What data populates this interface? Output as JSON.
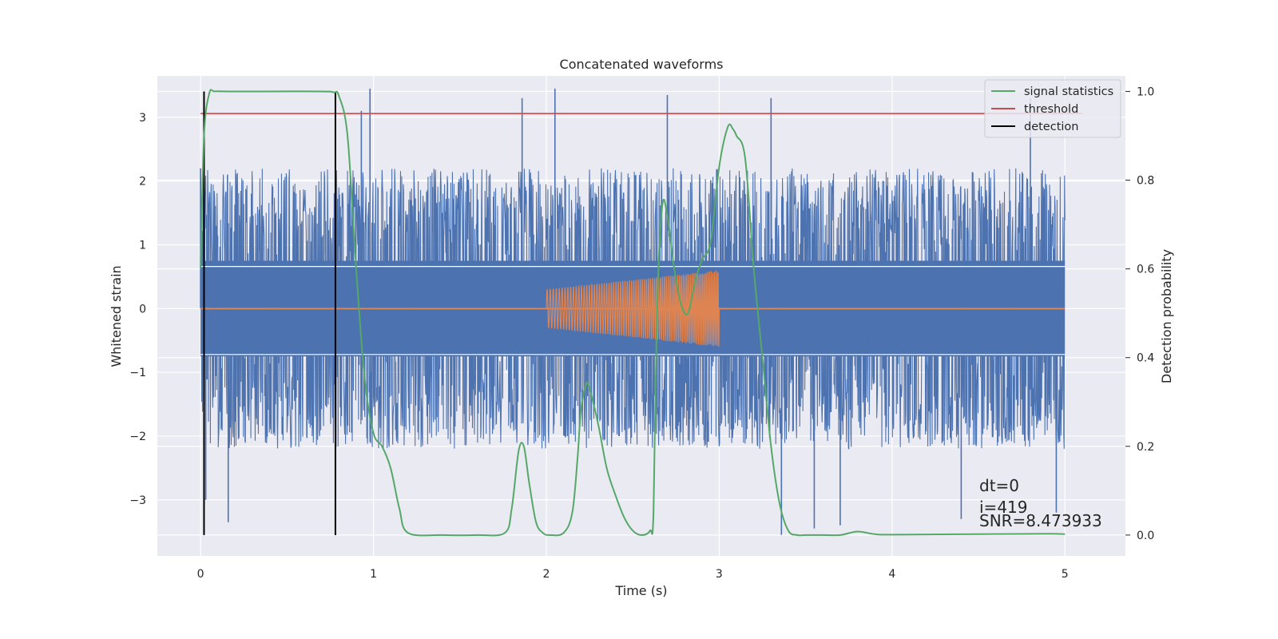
{
  "chart_data": {
    "type": "line",
    "title": "Concatenated waveforms",
    "xlabel": "Time (s)",
    "ylabel": "Whitened strain",
    "y2label": "Detection probability",
    "xlim": [
      -0.25,
      5.35
    ],
    "ylim": [
      -3.88,
      3.65
    ],
    "y2lim": [
      -0.047,
      1.035
    ],
    "x_ticks": [
      0,
      1,
      2,
      3,
      4,
      5
    ],
    "y_ticks": [
      -3,
      -2,
      -1,
      0,
      1,
      2,
      3
    ],
    "y2_ticks": [
      0.0,
      0.2,
      0.4,
      0.6,
      0.8,
      1.0
    ],
    "x_tick_labels": [
      "0",
      "1",
      "2",
      "3",
      "4",
      "5"
    ],
    "y_tick_labels": [
      "−3",
      "−2",
      "−1",
      "0",
      "1",
      "2",
      "3"
    ],
    "y2_tick_labels": [
      "0.0",
      "0.2",
      "0.4",
      "0.6",
      "0.8",
      "1.0"
    ],
    "grid": true,
    "legend_position": "top-right",
    "series": [
      {
        "name": "",
        "kind": "noise",
        "axis": "left",
        "color": "#4c72b0",
        "x_range": [
          0,
          5
        ],
        "envelope": 2.2,
        "spikes": [
          {
            "x": 0.0,
            "y": 2.2
          },
          {
            "x": 0.02,
            "y": -2.6
          },
          {
            "x": 0.03,
            "y": -3.0
          },
          {
            "x": 0.16,
            "y": -3.35
          },
          {
            "x": 0.78,
            "y": -3.25
          },
          {
            "x": 0.93,
            "y": 3.1
          },
          {
            "x": 0.98,
            "y": 3.45
          },
          {
            "x": 1.86,
            "y": 3.3
          },
          {
            "x": 2.05,
            "y": 3.45
          },
          {
            "x": 2.7,
            "y": 3.35
          },
          {
            "x": 3.3,
            "y": 3.3
          },
          {
            "x": 3.36,
            "y": -3.55
          },
          {
            "x": 3.55,
            "y": -3.45
          },
          {
            "x": 3.7,
            "y": -3.4
          },
          {
            "x": 4.4,
            "y": -3.3
          },
          {
            "x": 4.8,
            "y": 3.3
          },
          {
            "x": 4.95,
            "y": -3.2
          }
        ]
      },
      {
        "name": "",
        "kind": "chirp",
        "axis": "left",
        "color": "#dd8452",
        "x_range": [
          2,
          3
        ],
        "amplitude_start": 0.3,
        "amplitude_end": 0.6
      },
      {
        "name": "signal statistics",
        "kind": "line",
        "axis": "right",
        "color": "#55a868",
        "x": [
          0.0,
          0.02,
          0.05,
          0.08,
          0.15,
          0.4,
          0.7,
          0.77,
          0.8,
          0.85,
          0.9,
          0.95,
          1.0,
          1.05,
          1.1,
          1.15,
          1.2,
          1.4,
          1.6,
          1.76,
          1.8,
          1.84,
          1.87,
          1.9,
          1.94,
          1.98,
          2.02,
          2.1,
          2.15,
          2.18,
          2.2,
          2.23,
          2.25,
          2.3,
          2.35,
          2.4,
          2.45,
          2.5,
          2.55,
          2.6,
          2.62,
          2.64,
          2.67,
          2.7,
          2.74,
          2.78,
          2.82,
          2.86,
          2.9,
          2.95,
          3.0,
          3.05,
          3.08,
          3.1,
          3.15,
          3.2,
          3.25,
          3.3,
          3.35,
          3.4,
          3.45,
          3.5,
          3.6,
          3.7,
          3.8,
          3.9,
          4.0,
          4.5,
          4.9,
          5.0
        ],
        "y": [
          0.6,
          0.9,
          0.995,
          1.0,
          1.0,
          1.0,
          1.0,
          0.998,
          0.99,
          0.9,
          0.6,
          0.35,
          0.23,
          0.2,
          0.15,
          0.06,
          0.005,
          0.0,
          0.0,
          0.005,
          0.06,
          0.19,
          0.2,
          0.12,
          0.03,
          0.005,
          0.0,
          0.005,
          0.05,
          0.17,
          0.28,
          0.34,
          0.33,
          0.25,
          0.15,
          0.09,
          0.04,
          0.01,
          0.0,
          0.01,
          0.05,
          0.5,
          0.74,
          0.72,
          0.6,
          0.52,
          0.5,
          0.57,
          0.62,
          0.66,
          0.83,
          0.92,
          0.915,
          0.9,
          0.85,
          0.6,
          0.4,
          0.2,
          0.07,
          0.01,
          0.0,
          0.0,
          0.0,
          0.0,
          0.008,
          0.002,
          0.001,
          0.002,
          0.003,
          0.002
        ]
      },
      {
        "name": "threshold",
        "kind": "hline",
        "axis": "right",
        "color": "#c44e52",
        "value": 0.95,
        "x_range": [
          0,
          5.1
        ]
      },
      {
        "name": "detection",
        "kind": "vlines",
        "axis": "right",
        "color": "#000000",
        "x_values": [
          0.02,
          0.78
        ],
        "y_range": [
          0.0,
          1.0
        ]
      }
    ],
    "annotations": [
      "dt=0",
      "i=419",
      "SNR=8.473933"
    ]
  }
}
